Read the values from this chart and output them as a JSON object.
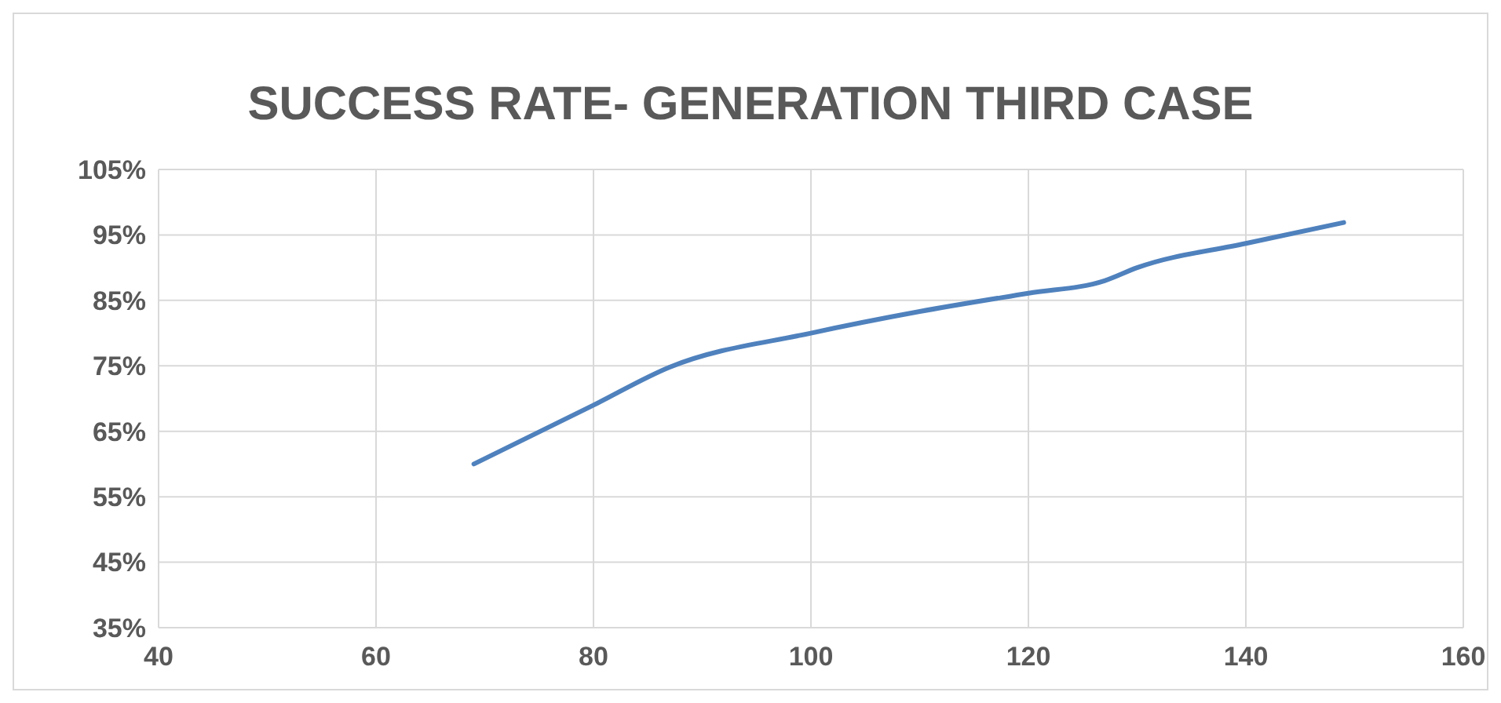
{
  "chart_data": {
    "type": "line",
    "title": "SUCCESS RATE- GENERATION THIRD CASE",
    "x": [
      69,
      80,
      87,
      100,
      110,
      120,
      127,
      130,
      140,
      149
    ],
    "series": [
      {
        "color": "#4f81bd",
        "values": [
          60,
          69,
          74.8,
          80,
          83.3,
          86.1,
          88,
          90,
          93.7,
          96.9
        ]
      }
    ],
    "xlim": [
      40,
      160
    ],
    "xticks": [
      40,
      60,
      80,
      100,
      120,
      140,
      160
    ],
    "ylim": [
      35,
      105
    ],
    "yticks": [
      {
        "value": 35,
        "label": "35%"
      },
      {
        "value": 45,
        "label": "45%"
      },
      {
        "value": 55,
        "label": "55%"
      },
      {
        "value": 65,
        "label": "65%"
      },
      {
        "value": 75,
        "label": "75%"
      },
      {
        "value": 85,
        "label": "85%"
      },
      {
        "value": 95,
        "label": "95%"
      },
      {
        "value": 105,
        "label": "105%"
      }
    ],
    "grid": true,
    "marker": "none",
    "line_style": "solid"
  }
}
